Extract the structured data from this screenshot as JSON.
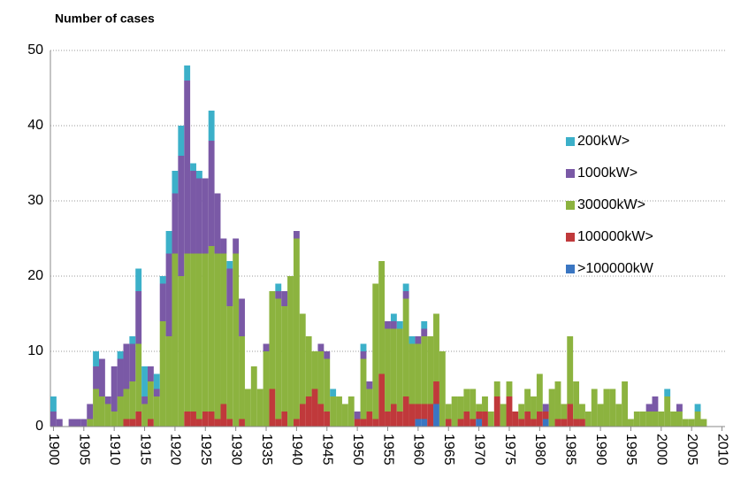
{
  "chart_data": {
    "type": "stacked-bar",
    "title": "Number of cases",
    "x": [
      1900,
      1901,
      1902,
      1903,
      1904,
      1905,
      1906,
      1907,
      1908,
      1909,
      1910,
      1911,
      1912,
      1913,
      1914,
      1915,
      1916,
      1917,
      1918,
      1919,
      1920,
      1921,
      1922,
      1923,
      1924,
      1925,
      1926,
      1927,
      1928,
      1929,
      1930,
      1931,
      1932,
      1933,
      1934,
      1935,
      1936,
      1937,
      1938,
      1939,
      1940,
      1941,
      1942,
      1943,
      1944,
      1945,
      1946,
      1947,
      1948,
      1949,
      1950,
      1951,
      1952,
      1953,
      1954,
      1955,
      1956,
      1957,
      1958,
      1959,
      1960,
      1961,
      1962,
      1963,
      1964,
      1965,
      1966,
      1967,
      1968,
      1969,
      1970,
      1971,
      1972,
      1973,
      1974,
      1975,
      1976,
      1977,
      1978,
      1979,
      1980,
      1981,
      1982,
      1983,
      1984,
      1985,
      1986,
      1987,
      1988,
      1989,
      1990,
      1991,
      1992,
      1993,
      1994,
      1995,
      1996,
      1997,
      1998,
      1999,
      2000,
      2001,
      2002,
      2003,
      2004,
      2005,
      2006,
      2007,
      2008
    ],
    "series": [
      {
        "name": ">100000kW",
        "color": "#3a76c2",
        "values": [
          0,
          0,
          0,
          0,
          0,
          0,
          0,
          0,
          0,
          0,
          0,
          0,
          0,
          0,
          0,
          0,
          0,
          0,
          0,
          0,
          0,
          0,
          0,
          0,
          0,
          0,
          0,
          0,
          0,
          0,
          0,
          0,
          0,
          0,
          0,
          0,
          0,
          0,
          0,
          0,
          0,
          0,
          0,
          0,
          0,
          0,
          0,
          0,
          0,
          0,
          0,
          0,
          0,
          0,
          0,
          0,
          0,
          0,
          0,
          0,
          1,
          1,
          0,
          3,
          0,
          0,
          0,
          0,
          0,
          0,
          1,
          0,
          0,
          0,
          0,
          0,
          0,
          0,
          0,
          0,
          0,
          1,
          0,
          0,
          0,
          0,
          0,
          0,
          0,
          0,
          0,
          0,
          0,
          0,
          0,
          0,
          0,
          0,
          0,
          0,
          0,
          0,
          0,
          0,
          0,
          0,
          0,
          0,
          0
        ]
      },
      {
        "name": "100000kW>",
        "color": "#c0393b",
        "values": [
          0,
          0,
          0,
          0,
          0,
          0,
          0,
          0,
          0,
          0,
          0,
          0,
          1,
          1,
          2,
          0,
          1,
          0,
          0,
          0,
          0,
          0,
          2,
          2,
          1,
          2,
          2,
          1,
          3,
          1,
          0,
          1,
          0,
          0,
          0,
          0,
          5,
          1,
          2,
          0,
          1,
          3,
          4,
          5,
          3,
          2,
          0,
          0,
          0,
          0,
          1,
          1,
          2,
          1,
          7,
          2,
          3,
          2,
          4,
          3,
          2,
          2,
          3,
          3,
          0,
          1,
          0,
          1,
          2,
          1,
          1,
          2,
          0,
          4,
          0,
          4,
          2,
          1,
          2,
          1,
          2,
          1,
          0,
          1,
          1,
          3,
          1,
          1,
          0,
          0,
          0,
          0,
          0,
          0,
          0,
          0,
          0,
          0,
          0,
          0,
          0,
          0,
          0,
          0,
          0,
          0,
          0,
          0,
          0
        ]
      },
      {
        "name": "30000kW>",
        "color": "#8cb33f",
        "values": [
          0,
          0,
          0,
          0,
          0,
          0,
          1,
          5,
          4,
          3,
          2,
          4,
          4,
          5,
          9,
          3,
          5,
          4,
          14,
          12,
          23,
          20,
          21,
          21,
          22,
          21,
          22,
          22,
          20,
          15,
          23,
          11,
          5,
          8,
          5,
          10,
          13,
          16,
          14,
          20,
          24,
          12,
          8,
          5,
          7,
          7,
          4,
          4,
          3,
          4,
          0,
          8,
          3,
          18,
          15,
          11,
          10,
          11,
          13,
          8,
          8,
          9,
          9,
          9,
          10,
          2,
          4,
          3,
          3,
          4,
          1,
          2,
          2,
          2,
          3,
          2,
          0,
          2,
          3,
          3,
          5,
          0,
          5,
          5,
          2,
          9,
          5,
          2,
          2,
          5,
          3,
          5,
          5,
          3,
          6,
          1,
          2,
          2,
          2,
          2,
          2,
          4,
          2,
          2,
          1,
          1,
          2,
          1,
          0
        ]
      },
      {
        "name": "1000kW>",
        "color": "#7a59a6",
        "values": [
          2,
          1,
          0,
          1,
          1,
          1,
          2,
          3,
          5,
          1,
          6,
          5,
          6,
          5,
          7,
          1,
          2,
          1,
          5,
          11,
          8,
          16,
          23,
          11,
          10,
          10,
          14,
          8,
          2,
          5,
          2,
          5,
          0,
          0,
          0,
          1,
          0,
          1,
          2,
          0,
          1,
          0,
          0,
          0,
          1,
          1,
          0,
          0,
          0,
          0,
          1,
          1,
          1,
          0,
          0,
          1,
          1,
          0,
          1,
          0,
          1,
          1,
          0,
          0,
          0,
          0,
          0,
          0,
          0,
          0,
          0,
          0,
          0,
          0,
          0,
          0,
          0,
          0,
          0,
          0,
          0,
          1,
          0,
          0,
          0,
          0,
          0,
          0,
          0,
          0,
          0,
          0,
          0,
          0,
          0,
          0,
          0,
          0,
          1,
          2,
          0,
          0,
          0,
          1,
          0,
          0,
          0,
          0,
          0
        ]
      },
      {
        "name": "200kW>",
        "color": "#3cb0c9",
        "values": [
          2,
          0,
          0,
          0,
          0,
          0,
          0,
          2,
          0,
          0,
          0,
          1,
          0,
          1,
          3,
          4,
          0,
          2,
          1,
          3,
          3,
          4,
          2,
          1,
          1,
          0,
          4,
          0,
          0,
          1,
          0,
          0,
          0,
          0,
          0,
          0,
          0,
          1,
          0,
          0,
          0,
          0,
          0,
          0,
          0,
          0,
          1,
          0,
          0,
          0,
          0,
          1,
          0,
          0,
          0,
          0,
          1,
          1,
          1,
          1,
          0,
          1,
          0,
          0,
          0,
          0,
          0,
          0,
          0,
          0,
          0,
          0,
          0,
          0,
          0,
          0,
          0,
          0,
          0,
          0,
          0,
          0,
          0,
          0,
          0,
          0,
          0,
          0,
          0,
          0,
          0,
          0,
          0,
          0,
          0,
          0,
          0,
          0,
          0,
          0,
          0,
          1,
          0,
          0,
          0,
          0,
          1,
          0,
          0
        ]
      }
    ],
    "xlim": [
      1899.5,
      2010.5
    ],
    "xticks": [
      1900,
      1905,
      1910,
      1915,
      1920,
      1925,
      1930,
      1935,
      1940,
      1945,
      1950,
      1955,
      1960,
      1965,
      1970,
      1975,
      1980,
      1985,
      1990,
      1995,
      2000,
      2005,
      2010
    ],
    "ylim": [
      0,
      50
    ],
    "yticks": [
      0,
      10,
      20,
      30,
      40,
      50
    ],
    "grid": true,
    "legend": "right"
  }
}
